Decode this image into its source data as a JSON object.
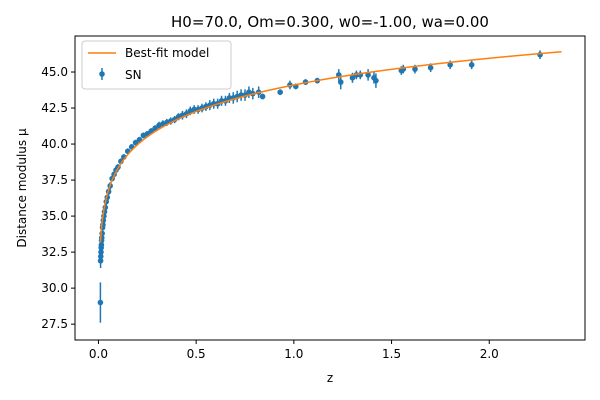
{
  "chart_data": {
    "type": "scatter",
    "title": "H0=70.0, Om=0.300, w0=-1.00, wa=0.00",
    "xlabel": "z",
    "ylabel": "Distance modulus μ",
    "xlim": [
      -0.12,
      2.49
    ],
    "ylim": [
      26.4,
      47.5
    ],
    "xticks": [
      0.0,
      0.5,
      1.0,
      1.5,
      2.0
    ],
    "xtick_labels": [
      "0.0",
      "0.5",
      "1.0",
      "1.5",
      "2.0"
    ],
    "yticks": [
      27.5,
      30.0,
      32.5,
      35.0,
      37.5,
      40.0,
      42.5,
      45.0
    ],
    "ytick_labels": [
      "27.5",
      "30.0",
      "32.5",
      "35.0",
      "37.5",
      "40.0",
      "42.5",
      "45.0"
    ],
    "grid": false,
    "legend_position": "top-left",
    "series": [
      {
        "name": "Best-fit model",
        "kind": "line",
        "color": "#ff7f0e",
        "model": {
          "H0": 70.0,
          "Om": 0.3,
          "w0": -1.0,
          "wa": 0.0
        },
        "x_range": [
          0.01,
          2.37
        ]
      },
      {
        "name": "SN",
        "kind": "errorbar",
        "color": "#1f77b4",
        "x": [
          0.01,
          0.011,
          0.012,
          0.013,
          0.014,
          0.015,
          0.016,
          0.017,
          0.019,
          0.021,
          0.023,
          0.025,
          0.028,
          0.031,
          0.035,
          0.04,
          0.045,
          0.052,
          0.06,
          0.07,
          0.08,
          0.09,
          0.1,
          0.115,
          0.13,
          0.15,
          0.17,
          0.19,
          0.21,
          0.23,
          0.25,
          0.27,
          0.29,
          0.31,
          0.33,
          0.35,
          0.37,
          0.39,
          0.41,
          0.43,
          0.45,
          0.47,
          0.49,
          0.51,
          0.53,
          0.55,
          0.57,
          0.59,
          0.61,
          0.63,
          0.65,
          0.67,
          0.69,
          0.71,
          0.73,
          0.75,
          0.77,
          0.79,
          0.82,
          0.84,
          0.93,
          0.98,
          1.01,
          1.06,
          1.12,
          1.23,
          1.24,
          1.3,
          1.32,
          1.34,
          1.38,
          1.41,
          1.42,
          1.55,
          1.56,
          1.62,
          1.7,
          1.8,
          1.91,
          2.26
        ],
        "y": [
          29.0,
          31.9,
          32.2,
          32.5,
          32.8,
          33.0,
          33.3,
          33.5,
          33.8,
          34.2,
          34.4,
          34.7,
          35.0,
          35.3,
          35.6,
          36.0,
          36.3,
          36.7,
          37.1,
          37.6,
          37.9,
          38.2,
          38.4,
          38.8,
          39.1,
          39.5,
          39.8,
          40.1,
          40.3,
          40.6,
          40.7,
          40.9,
          41.1,
          41.3,
          41.4,
          41.5,
          41.6,
          41.7,
          41.9,
          42.0,
          42.1,
          42.3,
          42.4,
          42.4,
          42.5,
          42.6,
          42.7,
          42.8,
          42.8,
          43.0,
          43.0,
          43.2,
          43.2,
          43.3,
          43.4,
          43.4,
          43.6,
          43.5,
          43.6,
          43.3,
          43.6,
          44.1,
          44.0,
          44.3,
          44.4,
          44.8,
          44.3,
          44.6,
          44.8,
          44.8,
          44.8,
          44.6,
          44.4,
          45.1,
          45.2,
          45.2,
          45.3,
          45.5,
          45.5,
          46.2
        ],
        "yerr": [
          1.4,
          0.5,
          0.5,
          0.45,
          0.45,
          0.4,
          0.4,
          0.4,
          0.35,
          0.35,
          0.3,
          0.3,
          0.3,
          0.3,
          0.25,
          0.25,
          0.25,
          0.25,
          0.25,
          0.2,
          0.2,
          0.2,
          0.2,
          0.2,
          0.2,
          0.2,
          0.2,
          0.2,
          0.2,
          0.2,
          0.2,
          0.2,
          0.2,
          0.25,
          0.25,
          0.25,
          0.25,
          0.25,
          0.25,
          0.3,
          0.3,
          0.3,
          0.3,
          0.3,
          0.3,
          0.3,
          0.35,
          0.35,
          0.35,
          0.35,
          0.35,
          0.35,
          0.4,
          0.4,
          0.4,
          0.4,
          0.4,
          0.4,
          0.4,
          0.2,
          0.2,
          0.3,
          0.2,
          0.2,
          0.2,
          0.4,
          0.5,
          0.35,
          0.3,
          0.3,
          0.4,
          0.4,
          0.5,
          0.3,
          0.3,
          0.3,
          0.3,
          0.3,
          0.3,
          0.3
        ]
      }
    ]
  }
}
